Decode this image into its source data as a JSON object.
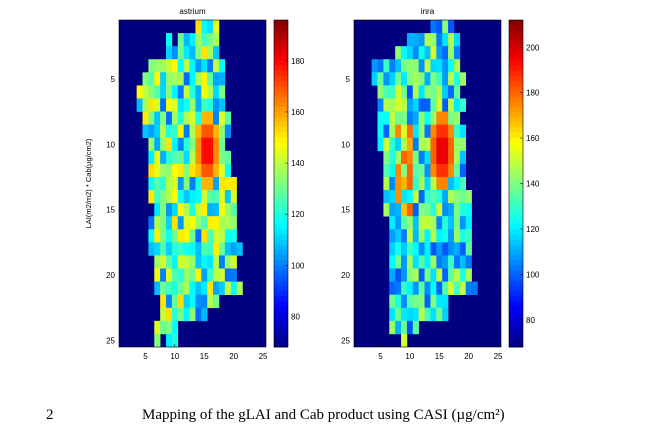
{
  "chart_data": [
    {
      "type": "heatmap",
      "title": "astrium",
      "ylabel": "LAI(m2/m2) * Cab(µg/cm2)",
      "xlim": [
        0.5,
        25.5
      ],
      "ylim": [
        0.5,
        25.5
      ],
      "x_ticks": [
        5,
        10,
        15,
        20,
        25
      ],
      "y_ticks": [
        5,
        10,
        15,
        20,
        25
      ],
      "colorbar": {
        "range": [
          68,
          196
        ],
        "ticks": [
          80,
          100,
          120,
          140,
          160,
          180
        ]
      },
      "background_value": 68,
      "centre_value": 190
    },
    {
      "type": "heatmap",
      "title": "inra",
      "xlim": [
        0.5,
        25.5
      ],
      "ylim": [
        0.5,
        25.5
      ],
      "x_ticks": [
        5,
        10,
        15,
        20,
        25
      ],
      "y_ticks": [
        5,
        10,
        15,
        20,
        25
      ],
      "colorbar": {
        "range": [
          68,
          212
        ],
        "ticks": [
          80,
          100,
          120,
          140,
          160,
          180,
          200
        ]
      },
      "background_value": 68,
      "centre_value": 208
    }
  ],
  "caption": {
    "number": "2",
    "text": "Mapping of the gLAI and Cab product using CASI (µg/cm²)"
  }
}
